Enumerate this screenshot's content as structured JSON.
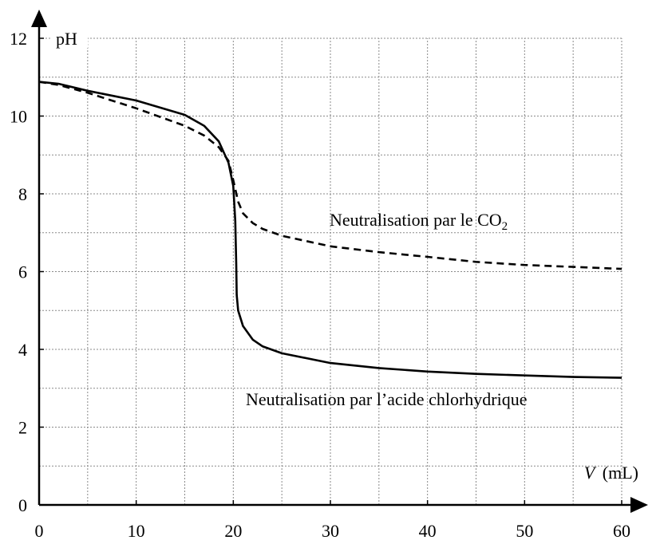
{
  "chart_data": {
    "type": "line",
    "xlabel_var": "V",
    "xlabel_unit": "(mL)",
    "ylabel": "pH",
    "xlim": [
      0,
      60
    ],
    "ylim": [
      0,
      12
    ],
    "x_ticks": [
      "0",
      "10",
      "20",
      "30",
      "40",
      "50",
      "60"
    ],
    "y_ticks": [
      "0",
      "2",
      "4",
      "6",
      "8",
      "10",
      "12"
    ],
    "grid": true,
    "series": [
      {
        "name": "Neutralisation par l’acide chlorhydrique",
        "style": "solid",
        "x": [
          0,
          2,
          5,
          10,
          15,
          17,
          18.5,
          19.5,
          20,
          20.2,
          20.3,
          20.35,
          20.5,
          21,
          22,
          23,
          25,
          30,
          35,
          40,
          45,
          50,
          55,
          60
        ],
        "y": [
          10.88,
          10.83,
          10.65,
          10.4,
          10.03,
          9.75,
          9.35,
          8.8,
          8.2,
          7.3,
          6.2,
          5.4,
          5.0,
          4.6,
          4.25,
          4.08,
          3.9,
          3.65,
          3.52,
          3.43,
          3.37,
          3.33,
          3.29,
          3.27
        ]
      },
      {
        "name": "Neutralisation par le CO",
        "name_sub": "2",
        "style": "dashed",
        "x": [
          0,
          2,
          5,
          10,
          15,
          17,
          18.5,
          19.5,
          20,
          20.5,
          21,
          22,
          23,
          25,
          30,
          35,
          40,
          45,
          50,
          55,
          60
        ],
        "y": [
          10.88,
          10.8,
          10.6,
          10.2,
          9.75,
          9.5,
          9.2,
          8.85,
          8.35,
          7.8,
          7.5,
          7.25,
          7.1,
          6.92,
          6.65,
          6.5,
          6.38,
          6.25,
          6.17,
          6.12,
          6.07
        ]
      }
    ]
  }
}
